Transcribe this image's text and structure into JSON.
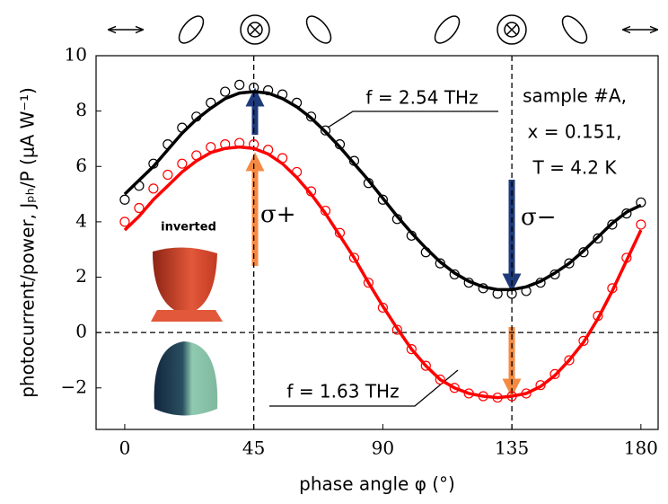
{
  "chart_data": {
    "type": "scatter",
    "xlabel": "phase angle φ (°)",
    "ylabel": "photocurrent/power, Jₚₕ/P (μA W⁻¹)",
    "xlim": [
      -10,
      186
    ],
    "ylim": [
      -3.5,
      10
    ],
    "xticks": [
      0,
      45,
      90,
      135,
      180
    ],
    "yticks": [
      {
        "value": -2,
        "label": "−2"
      },
      0,
      2,
      4,
      6,
      8,
      10
    ],
    "x": [
      0,
      5,
      10,
      15,
      20,
      25,
      30,
      35,
      40,
      45,
      50,
      55,
      60,
      65,
      70,
      75,
      80,
      85,
      90,
      95,
      100,
      105,
      110,
      115,
      120,
      125,
      130,
      135,
      140,
      145,
      150,
      155,
      160,
      165,
      170,
      175,
      180
    ],
    "series": [
      {
        "name": "f = 2.54 THz",
        "color": "#000000",
        "values": [
          4.8,
          5.3,
          6.1,
          6.8,
          7.4,
          7.8,
          8.3,
          8.7,
          8.95,
          8.85,
          8.75,
          8.6,
          8.3,
          7.8,
          7.3,
          6.8,
          6.2,
          5.4,
          4.8,
          4.1,
          3.5,
          2.9,
          2.5,
          2.1,
          1.8,
          1.6,
          1.4,
          1.4,
          1.5,
          1.8,
          2.1,
          2.5,
          2.9,
          3.4,
          3.9,
          4.3,
          4.7
        ],
        "fit": [
          5.0,
          5.5,
          6.0,
          6.6,
          7.2,
          7.7,
          8.1,
          8.45,
          8.65,
          8.7,
          8.65,
          8.45,
          8.15,
          7.75,
          7.25,
          6.7,
          6.1,
          5.5,
          4.85,
          4.2,
          3.6,
          3.05,
          2.55,
          2.15,
          1.85,
          1.65,
          1.55,
          1.55,
          1.65,
          1.85,
          2.15,
          2.5,
          2.95,
          3.45,
          3.95,
          4.35,
          4.6
        ]
      },
      {
        "name": "f = 1.63 THz",
        "color": "#ff0000",
        "values": [
          4.0,
          4.5,
          5.2,
          5.7,
          6.1,
          6.4,
          6.7,
          6.8,
          6.85,
          6.8,
          6.6,
          6.3,
          5.8,
          5.1,
          4.4,
          3.6,
          2.7,
          1.8,
          0.9,
          0.1,
          -0.6,
          -1.2,
          -1.7,
          -2.0,
          -2.2,
          -2.3,
          -2.35,
          -2.3,
          -2.2,
          -1.9,
          -1.5,
          -1.0,
          -0.3,
          0.6,
          1.6,
          2.7,
          3.9
        ],
        "fit": [
          3.7,
          4.2,
          4.8,
          5.3,
          5.8,
          6.2,
          6.5,
          6.65,
          6.7,
          6.65,
          6.45,
          6.1,
          5.6,
          5.0,
          4.3,
          3.5,
          2.7,
          1.8,
          0.95,
          0.15,
          -0.6,
          -1.2,
          -1.7,
          -2.0,
          -2.2,
          -2.3,
          -2.35,
          -2.3,
          -2.2,
          -1.95,
          -1.55,
          -1.0,
          -0.35,
          0.5,
          1.5,
          2.6,
          3.7
        ]
      }
    ],
    "annotations": {
      "sample": "sample #A,",
      "x": "x = 0.151,",
      "T": "T = 4.2 K",
      "sigma_plus": "σ+",
      "sigma_minus": "σ−",
      "inverted": "inverted"
    }
  }
}
